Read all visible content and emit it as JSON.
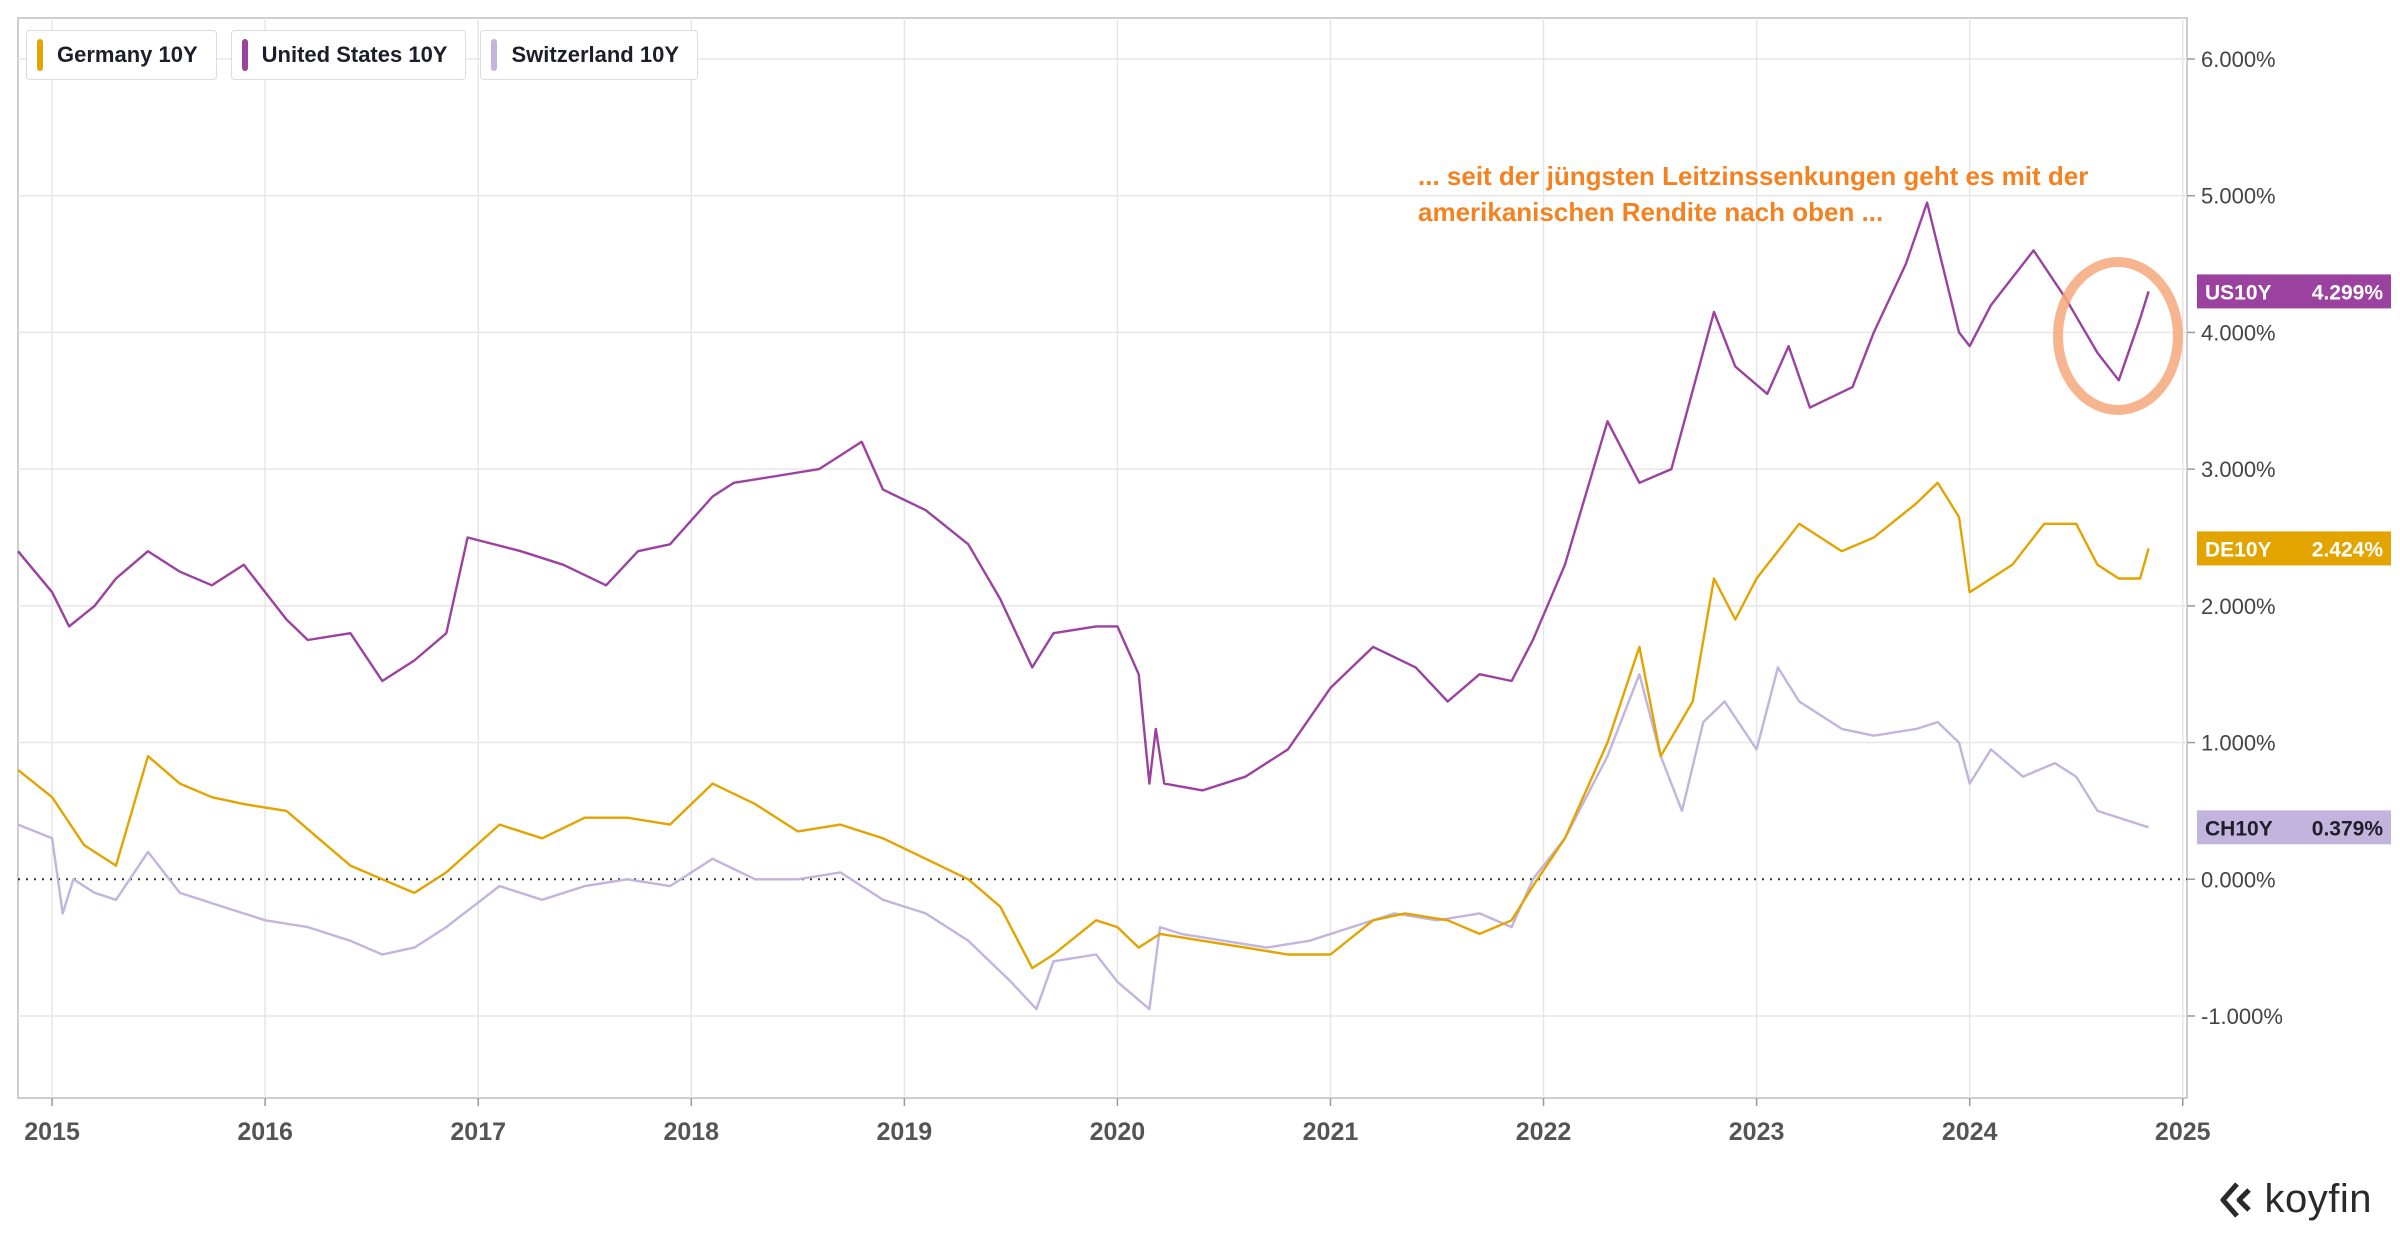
{
  "legend": [
    {
      "label": "Germany 10Y",
      "color": "#e3a400"
    },
    {
      "label": "United States 10Y",
      "color": "#9b42a0"
    },
    {
      "label": "Switzerland 10Y",
      "color": "#c2b4dc"
    }
  ],
  "annotation": {
    "line1": "... seit der jüngsten Leitzinssenkungen geht es mit der",
    "line2": "amerikanischen Rendite nach oben ..."
  },
  "logo": {
    "text": "koyfin"
  },
  "highlight_color": "#f5a87a",
  "chart_data": {
    "type": "line",
    "title": "",
    "xlabel": "",
    "ylabel": "",
    "x_ticks": [
      "2015",
      "2016",
      "2017",
      "2018",
      "2019",
      "2020",
      "2021",
      "2022",
      "2023",
      "2024",
      "2025"
    ],
    "y_ticks": [
      "-1.000%",
      "0.000%",
      "1.000%",
      "2.000%",
      "3.000%",
      "4.000%",
      "5.000%",
      "6.000%"
    ],
    "xlim": [
      2014.84,
      2025.02
    ],
    "ylim": [
      -1.6,
      6.3
    ],
    "grid": true,
    "zero_line": "dotted",
    "legend_position": "top-left",
    "series": [
      {
        "name": "United States 10Y",
        "short": "US10Y",
        "last_label": "4.299%",
        "color": "#9b42a0",
        "x": [
          2014.84,
          2015.0,
          2015.08,
          2015.2,
          2015.3,
          2015.45,
          2015.6,
          2015.75,
          2015.9,
          2016.1,
          2016.2,
          2016.4,
          2016.55,
          2016.7,
          2016.85,
          2016.95,
          2017.2,
          2017.4,
          2017.6,
          2017.75,
          2017.9,
          2018.1,
          2018.2,
          2018.4,
          2018.6,
          2018.8,
          2018.9,
          2019.1,
          2019.3,
          2019.45,
          2019.6,
          2019.7,
          2019.9,
          2020.0,
          2020.1,
          2020.15,
          2020.18,
          2020.22,
          2020.4,
          2020.6,
          2020.8,
          2021.0,
          2021.2,
          2021.4,
          2021.55,
          2021.7,
          2021.85,
          2021.95,
          2022.1,
          2022.3,
          2022.45,
          2022.6,
          2022.8,
          2022.9,
          2023.05,
          2023.15,
          2023.25,
          2023.45,
          2023.55,
          2023.7,
          2023.8,
          2023.95,
          2024.0,
          2024.1,
          2024.3,
          2024.45,
          2024.6,
          2024.7,
          2024.8,
          2024.84
        ],
        "y": [
          2.4,
          2.1,
          1.85,
          2.0,
          2.2,
          2.4,
          2.25,
          2.15,
          2.3,
          1.9,
          1.75,
          1.8,
          1.45,
          1.6,
          1.8,
          2.5,
          2.4,
          2.3,
          2.15,
          2.4,
          2.45,
          2.8,
          2.9,
          2.95,
          3.0,
          3.2,
          2.85,
          2.7,
          2.45,
          2.05,
          1.55,
          1.8,
          1.85,
          1.85,
          1.5,
          0.7,
          1.1,
          0.7,
          0.65,
          0.75,
          0.95,
          1.4,
          1.7,
          1.55,
          1.3,
          1.5,
          1.45,
          1.75,
          2.3,
          3.35,
          2.9,
          3.0,
          4.15,
          3.75,
          3.55,
          3.9,
          3.45,
          3.6,
          4.0,
          4.5,
          4.95,
          4.0,
          3.9,
          4.2,
          4.6,
          4.25,
          3.85,
          3.65,
          4.1,
          4.3
        ]
      },
      {
        "name": "Germany 10Y",
        "short": "DE10Y",
        "last_label": "2.424%",
        "color": "#e3a400",
        "x": [
          2014.84,
          2015.0,
          2015.15,
          2015.3,
          2015.45,
          2015.6,
          2015.75,
          2015.9,
          2016.1,
          2016.25,
          2016.4,
          2016.55,
          2016.7,
          2016.85,
          2017.1,
          2017.3,
          2017.5,
          2017.7,
          2017.9,
          2018.1,
          2018.3,
          2018.5,
          2018.7,
          2018.9,
          2019.1,
          2019.3,
          2019.45,
          2019.6,
          2019.7,
          2019.9,
          2020.0,
          2020.1,
          2020.2,
          2020.4,
          2020.6,
          2020.8,
          2021.0,
          2021.2,
          2021.35,
          2021.55,
          2021.7,
          2021.85,
          2021.95,
          2022.1,
          2022.3,
          2022.45,
          2022.55,
          2022.7,
          2022.8,
          2022.9,
          2023.0,
          2023.2,
          2023.4,
          2023.55,
          2023.75,
          2023.85,
          2023.95,
          2024.0,
          2024.2,
          2024.35,
          2024.5,
          2024.6,
          2024.7,
          2024.8,
          2024.84
        ],
        "y": [
          0.8,
          0.6,
          0.25,
          0.1,
          0.9,
          0.7,
          0.6,
          0.55,
          0.5,
          0.3,
          0.1,
          0.0,
          -0.1,
          0.05,
          0.4,
          0.3,
          0.45,
          0.45,
          0.4,
          0.7,
          0.55,
          0.35,
          0.4,
          0.3,
          0.15,
          0.0,
          -0.2,
          -0.65,
          -0.55,
          -0.3,
          -0.35,
          -0.5,
          -0.4,
          -0.45,
          -0.5,
          -0.55,
          -0.55,
          -0.3,
          -0.25,
          -0.3,
          -0.4,
          -0.3,
          -0.05,
          0.3,
          1.0,
          1.7,
          0.9,
          1.3,
          2.2,
          1.9,
          2.2,
          2.6,
          2.4,
          2.5,
          2.75,
          2.9,
          2.65,
          2.1,
          2.3,
          2.6,
          2.6,
          2.3,
          2.2,
          2.2,
          2.42
        ]
      },
      {
        "name": "Switzerland 10Y",
        "short": "CH10Y",
        "last_label": "0.379%",
        "color": "#c2b4dc",
        "x": [
          2014.84,
          2015.0,
          2015.05,
          2015.1,
          2015.2,
          2015.3,
          2015.45,
          2015.6,
          2015.8,
          2016.0,
          2016.2,
          2016.4,
          2016.55,
          2016.7,
          2016.85,
          2017.1,
          2017.3,
          2017.5,
          2017.7,
          2017.9,
          2018.1,
          2018.3,
          2018.5,
          2018.7,
          2018.9,
          2019.1,
          2019.3,
          2019.5,
          2019.62,
          2019.7,
          2019.9,
          2020.0,
          2020.15,
          2020.2,
          2020.3,
          2020.5,
          2020.7,
          2020.9,
          2021.1,
          2021.3,
          2021.5,
          2021.7,
          2021.85,
          2021.95,
          2022.1,
          2022.3,
          2022.45,
          2022.55,
          2022.65,
          2022.75,
          2022.85,
          2023.0,
          2023.1,
          2023.2,
          2023.4,
          2023.55,
          2023.75,
          2023.85,
          2023.95,
          2024.0,
          2024.1,
          2024.25,
          2024.4,
          2024.5,
          2024.6,
          2024.8,
          2024.84
        ],
        "y": [
          0.4,
          0.3,
          -0.25,
          0.0,
          -0.1,
          -0.15,
          0.2,
          -0.1,
          -0.2,
          -0.3,
          -0.35,
          -0.45,
          -0.55,
          -0.5,
          -0.35,
          -0.05,
          -0.15,
          -0.05,
          0.0,
          -0.05,
          0.15,
          0.0,
          0.0,
          0.05,
          -0.15,
          -0.25,
          -0.45,
          -0.75,
          -0.95,
          -0.6,
          -0.55,
          -0.75,
          -0.95,
          -0.35,
          -0.4,
          -0.45,
          -0.5,
          -0.45,
          -0.35,
          -0.25,
          -0.3,
          -0.25,
          -0.35,
          0.0,
          0.3,
          0.9,
          1.5,
          0.9,
          0.5,
          1.15,
          1.3,
          0.95,
          1.55,
          1.3,
          1.1,
          1.05,
          1.1,
          1.15,
          1.0,
          0.7,
          0.95,
          0.75,
          0.85,
          0.75,
          0.5,
          0.4,
          0.38
        ]
      }
    ]
  }
}
